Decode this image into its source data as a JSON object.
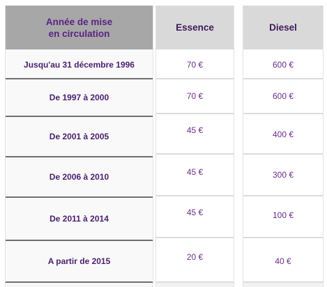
{
  "header": {
    "year_line1": "Année de mise",
    "year_line2": "en circulation",
    "essence": "Essence",
    "diesel": "Diesel"
  },
  "rows": [
    {
      "period": "Jusqu'au 31 décembre 1996",
      "essence": "70 €",
      "diesel": "600 €"
    },
    {
      "period": "De 1997 à 2000",
      "essence": "70 €",
      "diesel": "600 €"
    },
    {
      "period": "De 2001 à 2005",
      "essence": "45 €",
      "diesel": "400 €"
    },
    {
      "period": "De 2006 à 2010",
      "essence": "45 €",
      "diesel": "300 €"
    },
    {
      "period": "De 2011 à 2014",
      "essence": "45 €",
      "diesel": "100 €"
    },
    {
      "period": "A partir de 2015",
      "essence": "20 €",
      "diesel": "40 €"
    }
  ]
}
